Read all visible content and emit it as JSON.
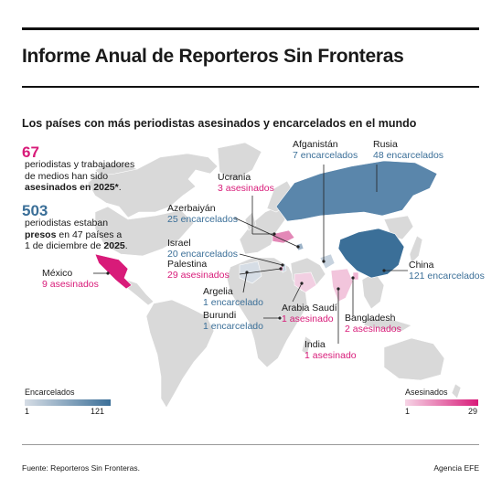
{
  "title": "Informe Anual de Reporteros Sin Fronteras",
  "subtitle": "Los países con más periodistas asesinados y encarcelados en el mundo",
  "stats": {
    "killed_number": "67",
    "killed_text_1": "periodistas y trabajadores",
    "killed_text_2": "de medios han sido",
    "killed_text_bold": "asesinados en 2025*",
    "killed_text_end": ".",
    "jailed_number": "503",
    "jailed_text_1": "periodistas estaban",
    "jailed_text_bold": "presos",
    "jailed_text_2": " en 47 países a",
    "jailed_text_3": "1 de diciembre de ",
    "jailed_text_bold2": "2025",
    "jailed_text_end": "."
  },
  "countries": [
    {
      "id": "mexico",
      "name": "México",
      "value": "9 asesinados",
      "type": "killed",
      "count": 9
    },
    {
      "id": "ucrania",
      "name": "Ucrania",
      "value": "3 asesinados",
      "type": "killed",
      "count": 3
    },
    {
      "id": "azerbaiyan",
      "name": "Azerbaiyán",
      "value": "25 encarcelados",
      "type": "jailed",
      "count": 25
    },
    {
      "id": "afganistan",
      "name": "Afganistán",
      "value": "7 encarcelados",
      "type": "jailed",
      "count": 7
    },
    {
      "id": "rusia",
      "name": "Rusia",
      "value": "48 encarcelados",
      "type": "jailed",
      "count": 48
    },
    {
      "id": "israel",
      "name": "Israel",
      "value": "20 encarcelados",
      "type": "jailed",
      "count": 20
    },
    {
      "id": "palestina",
      "name": "Palestina",
      "value": "29 asesinados",
      "type": "killed",
      "count": 29
    },
    {
      "id": "argelia",
      "name": "Argelia",
      "value": "1 encarcelado",
      "type": "jailed",
      "count": 1
    },
    {
      "id": "burundi",
      "name": "Burundi",
      "value": "1 encarcelado",
      "type": "jailed",
      "count": 1
    },
    {
      "id": "arabia",
      "name": "Arabia Saudí",
      "value": "1 asesinado",
      "type": "killed",
      "count": 1
    },
    {
      "id": "china",
      "name": "China",
      "value": "121 encarcelados",
      "type": "jailed",
      "count": 121
    },
    {
      "id": "bangladesh",
      "name": "Bangladesh",
      "value": "2 asesinados",
      "type": "killed",
      "count": 2
    },
    {
      "id": "india",
      "name": "India",
      "value": "1 asesinado",
      "type": "killed",
      "count": 1
    }
  ],
  "legend_jailed": {
    "title": "Encarcelados",
    "min": "1",
    "max": "121",
    "color_low": "#d6dde5",
    "color_high": "#3b6f98"
  },
  "legend_killed": {
    "title": "Asesinados",
    "min": "1",
    "max": "29",
    "color_low": "#f6d5e6",
    "color_high": "#d81b79"
  },
  "colors": {
    "land": "#d9d9d9",
    "killed": "#d81b79",
    "jailed": "#3b6f98"
  },
  "footer": {
    "source": "Fuente: Reporteros Sin Fronteras.",
    "agency": "Agencia EFE"
  }
}
